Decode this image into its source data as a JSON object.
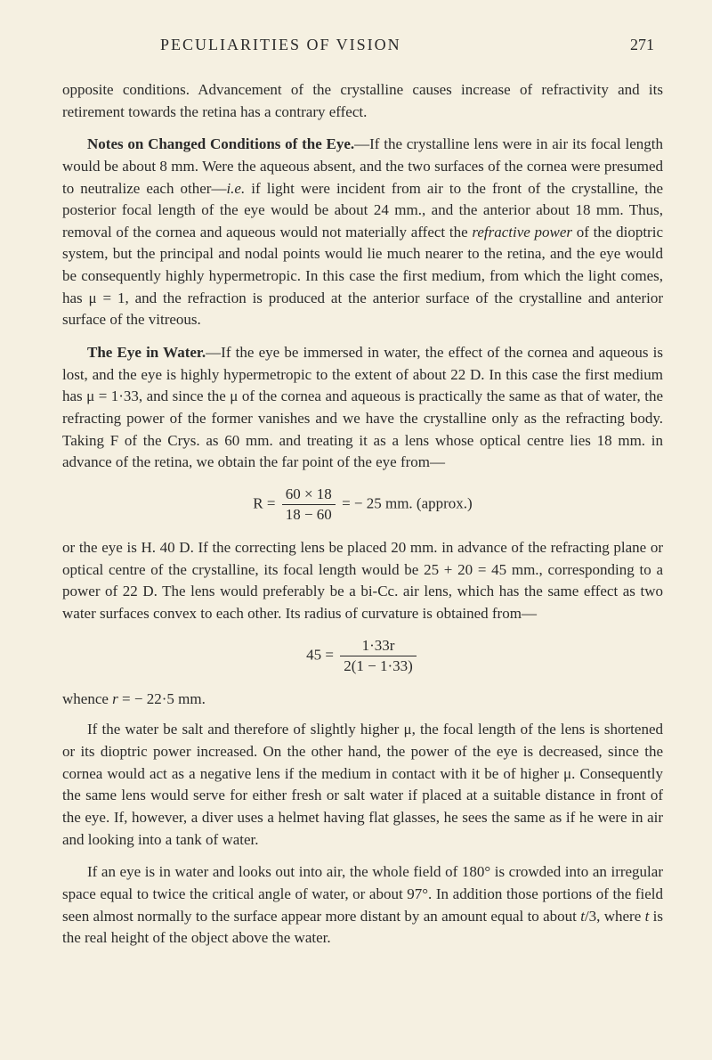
{
  "header": {
    "title": "PECULIARITIES OF VISION",
    "page_number": "271"
  },
  "para1": "opposite conditions. Advancement of the crystalline causes increase of refractivity and its retirement towards the retina has a contrary effect.",
  "section1": {
    "lead": "Notes on Changed Conditions of the Eye.",
    "body1": "—If the crystalline lens were in air its focal length would be about 8 mm. Were the aqueous absent, and the two surfaces of the cornea were presumed to neutralize each other—",
    "italic1": "i.e.",
    "body2": " if light were incident from air to the front of the crystalline, the posterior focal length of the eye would be about 24 mm., and the anterior about 18 mm. Thus, removal of the cornea and aqueous would not materially affect the ",
    "italic2": "refractive power",
    "body3": " of the dioptric system, but the principal and nodal points would lie much nearer to the retina, and the eye would be consequently highly hypermetropic. In this case the first medium, from which the light comes, has μ = 1, and the refraction is produced at the anterior surface of the crystalline and anterior surface of the vitreous."
  },
  "section2": {
    "lead": "The Eye in Water.",
    "body1": "—If the eye be immersed in water, the effect of the cornea and aqueous is lost, and the eye is highly hypermetropic to the extent of about 22 D. In this case the first medium has μ = 1·33, and since the μ of the cornea and aqueous is practically the same as that of water, the refracting power of the former vanishes and we have the crystalline only as the refracting body. Taking F of the Crys. as 60 mm. and treating it as a lens whose optical centre lies 18 mm. in advance of the retina, we obtain the far point of the eye from—"
  },
  "formula1": {
    "prefix": "R = ",
    "num": "60 × 18",
    "den": "18 − 60",
    "suffix": " = − 25 mm. (approx.)"
  },
  "para3": "or the eye is H. 40 D. If the correcting lens be placed 20 mm. in advance of the refracting plane or optical centre of the crystalline, its focal length would be 25 + 20 = 45 mm., corresponding to a power of 22 D. The lens would preferably be a bi-Cc. air lens, which has the same effect as two water surfaces convex to each other. Its radius of curvature is obtained from—",
  "formula2": {
    "prefix": "45 = ",
    "num": "1·33r",
    "den": "2(1 − 1·33)"
  },
  "whence": {
    "prefix": "whence ",
    "italic": "r",
    "suffix": " = − 22·5 mm."
  },
  "para4": {
    "body1": "If the water be salt and therefore of slightly higher μ, the focal length of the lens is shortened or its dioptric power increased. On the other hand, the power of the eye is decreased, since the cornea would act as a negative lens if the medium in contact with it be of higher μ. Consequently the same lens would serve for either fresh or salt water if placed at a suitable distance in front of the eye. If, however, a diver uses a helmet having flat glasses, he sees the same as if he were in air and looking into a tank of water."
  },
  "para5": {
    "body1": "If an eye is in water and looks out into air, the whole field of 180° is crowded into an irregular space equal to twice the critical angle of water, or about 97°. In addition those portions of the field seen almost normally to the surface appear more distant by an amount equal to about ",
    "italic1": "t",
    "body2": "/3, where ",
    "italic2": "t",
    "body3": " is the real height of the object above the water."
  }
}
